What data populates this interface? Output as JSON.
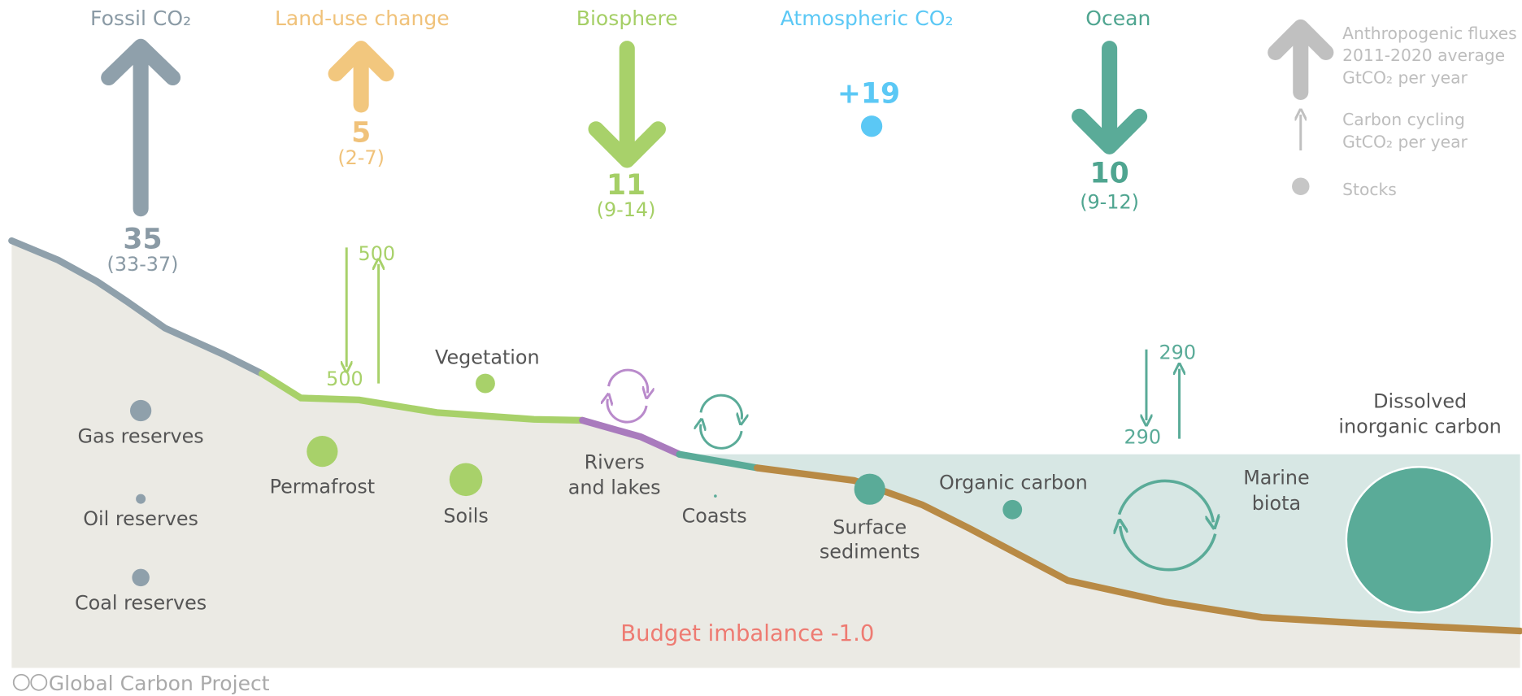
{
  "fluxes": [
    {
      "label": "Fossil CO₂",
      "value": "35",
      "range": "(33-37)"
    },
    {
      "label": "Land-use change",
      "value": "5",
      "range": "(2-7)"
    },
    {
      "label": "Biosphere",
      "value": "11",
      "range": "(9-14)"
    },
    {
      "label": "Atmospheric CO₂",
      "value": "+19"
    },
    {
      "label": "Ocean",
      "value": "10",
      "range": "(9-12)"
    }
  ],
  "legend": {
    "anthropogenic": [
      "Anthropogenic fluxes",
      "2011-2020 average",
      "GtCO₂ per year"
    ],
    "cycling": [
      "Carbon cycling",
      "GtCO₂ per year"
    ],
    "stocks": "Stocks"
  },
  "cycling": {
    "land_down": "500",
    "land_up": "500",
    "ocean_down": "290",
    "ocean_up": "290"
  },
  "stocks": [
    {
      "label": [
        "Gas reserves"
      ]
    },
    {
      "label": [
        "Oil reserves"
      ]
    },
    {
      "label": [
        "Coal reserves"
      ]
    },
    {
      "label": [
        "Permafrost"
      ]
    },
    {
      "label": [
        "Soils"
      ]
    },
    {
      "label": [
        "Vegetation"
      ]
    },
    {
      "label": [
        "Rivers",
        "and lakes"
      ]
    },
    {
      "label": [
        "Coasts"
      ]
    },
    {
      "label": [
        "Surface",
        "sediments"
      ]
    },
    {
      "label": [
        "Organic carbon"
      ]
    },
    {
      "label": [
        "Marine",
        "biota"
      ]
    },
    {
      "label": [
        "Dissolved",
        "inorganic carbon"
      ]
    }
  ],
  "budget_imbalance": "Budget imbalance -1.0",
  "footer": "Global Carbon Project"
}
